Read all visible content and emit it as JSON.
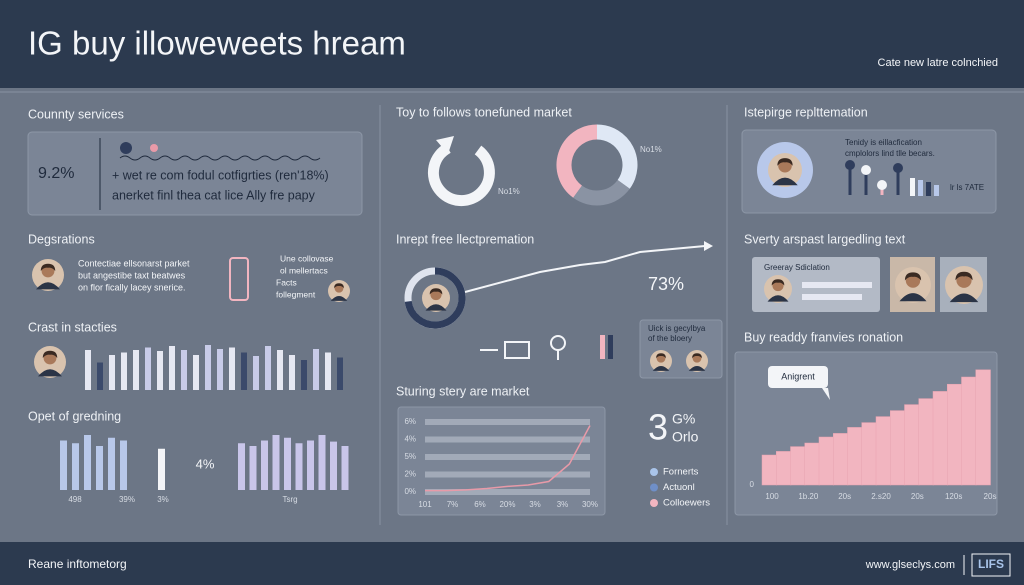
{
  "header": {
    "title": "IG buy illoweweets hream",
    "subtitle": "Cate new latre colnchied"
  },
  "left": {
    "services": {
      "title": "Counnty services",
      "stat": "9.2%",
      "lines": [
        "+ wet re com fodul cotfigrties (ren'18%)",
        "anerket finl thea cat lice Ally fre papy"
      ]
    },
    "degsrations": {
      "title": "Degsrations",
      "lines": [
        "Contectiae ellsonarst parket",
        "but angestibe taxt beatwes",
        "on flor fically lacey snerice."
      ],
      "side": [
        "Une collovase",
        "ol mellertacs",
        "Facts",
        "follegment"
      ]
    },
    "stacties": {
      "title": "Crast in stacties",
      "ylim": [
        0,
        100
      ],
      "values": [
        80,
        55,
        70,
        75,
        80,
        85,
        78,
        88,
        80,
        70,
        90,
        82,
        85,
        75,
        68,
        88,
        80,
        70,
        60,
        82,
        75,
        65
      ],
      "colors": [
        "#e6e8f2",
        "#3b4a6b",
        "#e6e8f2",
        "#e6e8f2",
        "#e6e8f2",
        "#c8cbe8",
        "#e6e8f2",
        "#e6e8f2",
        "#c8cbe8",
        "#e6e8f2",
        "#c8cbe8",
        "#c8cbe8",
        "#e6e8f2",
        "#3b4a6b",
        "#c8cbe8",
        "#c8cbe8",
        "#e6e8f2",
        "#e6e8f2",
        "#3b4a6b",
        "#c8cbe8",
        "#e6e8f2",
        "#3b4a6b"
      ]
    },
    "gredning": {
      "title": "Opet of gredning",
      "ylim": [
        0,
        100
      ],
      "center_label": "4%",
      "groups": [
        {
          "color": "#b8c8ea",
          "values": [
            90,
            85,
            100,
            80,
            95,
            90
          ]
        },
        {
          "color": "#f4f5f8",
          "values": [
            75
          ]
        },
        {
          "color": "#c9c6ea",
          "values": [
            85,
            80,
            90,
            100,
            95,
            85,
            90,
            100,
            88,
            80
          ]
        }
      ],
      "labels": [
        "498",
        "39%",
        "3%",
        "Tsrg"
      ]
    }
  },
  "middle": {
    "market": {
      "title": "Toy to follows tonefuned market",
      "donut": [
        40,
        35,
        25
      ],
      "donut_colors": [
        "#f2b5c0",
        "#dfe8f5",
        "#8a93a3"
      ],
      "labels": [
        "No1%",
        "No1%"
      ]
    },
    "premation": {
      "title": "Inrept free llectpremation",
      "ring": 73,
      "ring_label": "73%",
      "ring_color": "#2f3d5c"
    },
    "history": {
      "lines": [
        "Uick is gecylbya",
        "of the bloery"
      ]
    },
    "line": {
      "title": "Sturing stery are market",
      "ylim": [
        0,
        100
      ],
      "ylabels": [
        "6%",
        "4%",
        "5%",
        "2%",
        "0%"
      ],
      "xlabels": [
        "101",
        "7%",
        "6%",
        "20%",
        "3%",
        "3%",
        "30%"
      ],
      "values": [
        2,
        2,
        3,
        5,
        8,
        10,
        15,
        40,
        95
      ],
      "color": "#e89aa8"
    },
    "stat": {
      "big": "3",
      "top": "G%",
      "bottom": "Orlo"
    },
    "legend": [
      {
        "name": "Fornerts",
        "color": "#a9c4ea"
      },
      {
        "name": "Actuonl",
        "color": "#6f8fc8"
      },
      {
        "name": "Colloewers",
        "color": "#f2b5c0"
      }
    ]
  },
  "right": {
    "repl": {
      "title": "Istepirge replttemation",
      "lines": [
        "Tenidy is eillacfication",
        "cmplolors lind tlle becars."
      ],
      "tag": "lr ls 7ATE"
    },
    "text": {
      "title": "Sverty arspast largedling text",
      "card": "Greeray Sdiclation"
    },
    "area": {
      "title": "Buy readdy franvies ronation",
      "callout": "Anigrent",
      "ylim": [
        0,
        100
      ],
      "yticks": [
        0
      ],
      "values": [
        25,
        28,
        32,
        35,
        40,
        43,
        48,
        52,
        57,
        62,
        67,
        72,
        78,
        84,
        90,
        96
      ],
      "color": "#f2b5c0",
      "xlabels": [
        "100",
        "1b.20",
        "20s",
        "2.s20",
        "20s",
        "120s",
        "20s"
      ]
    }
  },
  "footer": {
    "left": "Reane inftometorg",
    "url": "www.glseclys.com",
    "badge": "LIFS"
  }
}
